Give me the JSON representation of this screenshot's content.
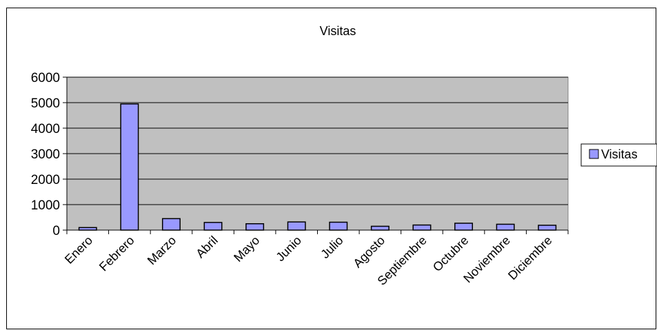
{
  "chart_data": {
    "type": "bar",
    "title": "Visitas",
    "xlabel": "",
    "ylabel": "",
    "categories": [
      "Enero",
      "Febrero",
      "Marzo",
      "Abril",
      "Mayo",
      "Junio",
      "Julio",
      "Agosto",
      "Septiembre",
      "Octubre",
      "Noviembre",
      "Diciembre"
    ],
    "series": [
      {
        "name": "Visitas",
        "color": "#9999ff",
        "values": [
          100,
          4950,
          450,
          300,
          250,
          320,
          310,
          150,
          200,
          270,
          230,
          190
        ]
      }
    ],
    "ylim": [
      0,
      6000
    ],
    "yticks": [
      0,
      1000,
      2000,
      3000,
      4000,
      5000,
      6000
    ],
    "grid": true,
    "plot_background": "#c0c0c0",
    "legend_position": "right"
  }
}
